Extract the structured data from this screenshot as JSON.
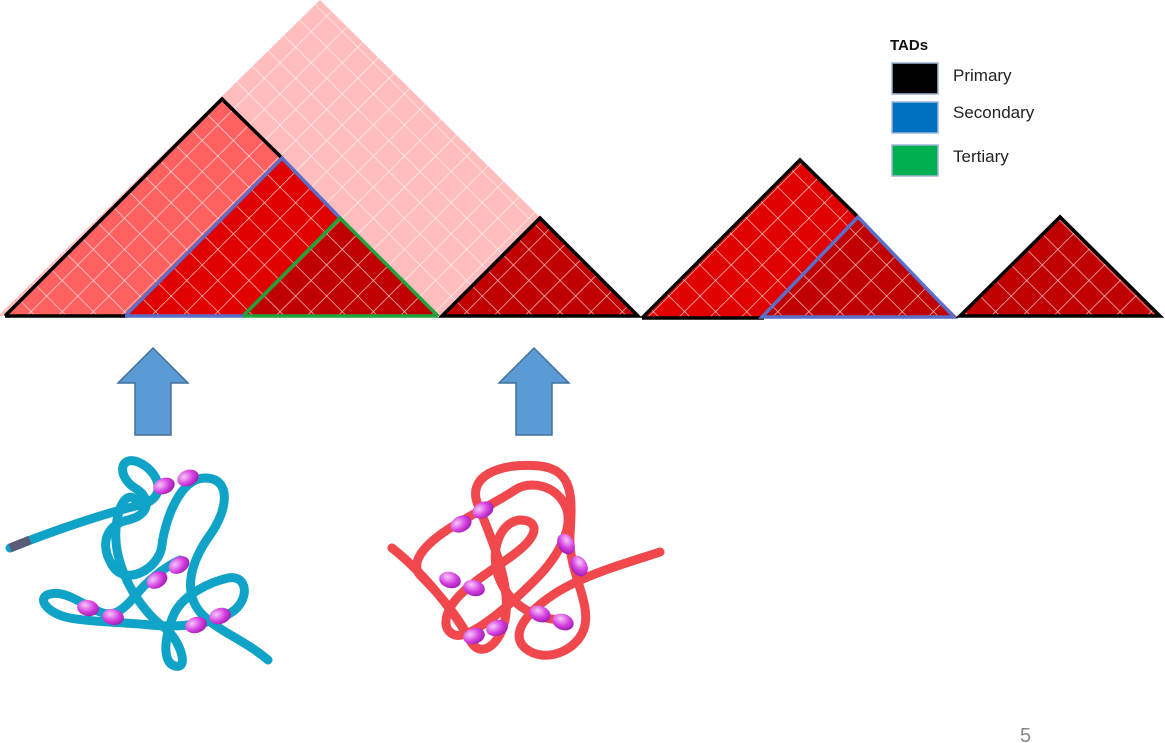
{
  "legend": {
    "title": "TADs",
    "items": [
      {
        "label": "Primary",
        "color": "#000000"
      },
      {
        "label": "Secondary",
        "color": "#0070C0"
      },
      {
        "label": "Tertiary",
        "color": "#00B050"
      }
    ]
  },
  "colors": {
    "light_pink": "#FFBDBD",
    "salmon": "#FF6060",
    "red": "#E00000",
    "dark_red": "#C00000",
    "secondary_outline": "#5B6FC8",
    "tertiary_outline": "#1FA33A",
    "arrow_fill": "#5B9BD5",
    "arrow_stroke": "#41719C",
    "chromatin_blue": "#0FA3C8",
    "chromatin_red": "#F0484C",
    "cohesin": "#D63FE0"
  },
  "page_number": "5"
}
